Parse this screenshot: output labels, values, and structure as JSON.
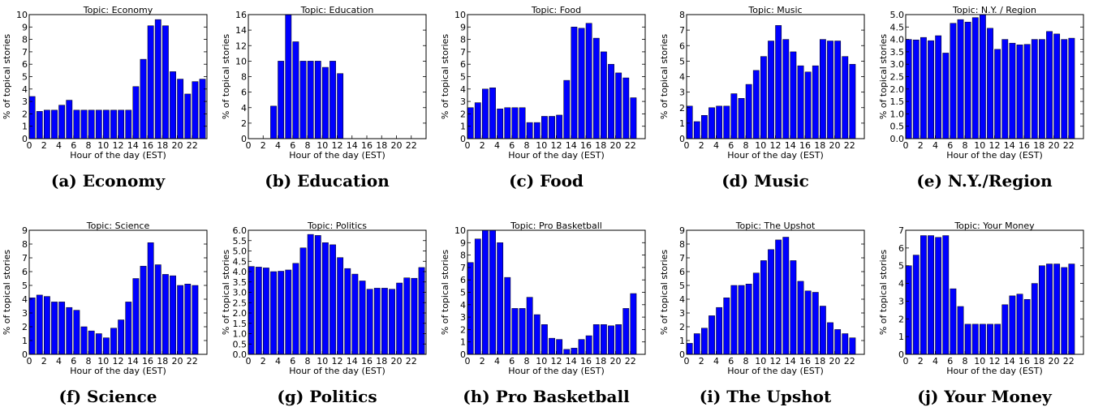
{
  "chart_data": [
    {
      "type": "bar",
      "title": "Topic: Economy",
      "caption": "(a) Economy",
      "xlabel": "Hour of the day (EST)",
      "ylabel": "% of topical stories",
      "ylim": [
        0,
        10
      ],
      "yticks": [
        "0",
        "1",
        "2",
        "3",
        "4",
        "5",
        "6",
        "7",
        "8",
        "9",
        "10"
      ],
      "xticks": [
        "0",
        "2",
        "4",
        "6",
        "8",
        "10",
        "12",
        "14",
        "16",
        "18",
        "20",
        "22"
      ],
      "color": "#0000ff",
      "values": [
        3.4,
        2.2,
        2.3,
        2.3,
        2.7,
        3.1,
        2.3,
        2.3,
        2.3,
        2.3,
        2.3,
        2.3,
        2.3,
        2.3,
        4.2,
        6.4,
        9.1,
        9.6,
        9.1,
        5.4,
        4.8,
        3.6,
        4.6,
        4.8
      ]
    },
    {
      "type": "bar",
      "title": "Topic: Education",
      "caption": "(b) Education",
      "xlabel": "Hour of the day (EST)",
      "ylabel": "% of topical stories",
      "ylim": [
        0,
        16
      ],
      "yticks": [
        "0",
        "2",
        "4",
        "6",
        "8",
        "10",
        "12",
        "14",
        "16"
      ],
      "xticks": [
        "0",
        "2",
        "4",
        "6",
        "8",
        "10",
        "12",
        "14",
        "16",
        "18",
        "20",
        "22"
      ],
      "color": "#0000ff",
      "values": [
        0,
        0,
        0,
        4.2,
        10,
        16,
        12.5,
        10,
        10,
        10,
        9.2,
        10,
        8.4,
        0,
        0,
        0,
        0,
        0,
        0,
        0,
        0,
        0,
        0,
        0
      ]
    },
    {
      "type": "bar",
      "title": "Topic: Food",
      "caption": "(c) Food",
      "xlabel": "Hour of the day (EST)",
      "ylabel": "% of topical stories",
      "ylim": [
        0,
        10
      ],
      "yticks": [
        "0",
        "1",
        "2",
        "3",
        "4",
        "5",
        "6",
        "7",
        "8",
        "9",
        "10"
      ],
      "xticks": [
        "0",
        "2",
        "4",
        "6",
        "8",
        "10",
        "12",
        "14",
        "16",
        "18",
        "20",
        "22"
      ],
      "color": "#0000ff",
      "values": [
        2.5,
        2.9,
        4.0,
        4.1,
        2.4,
        2.5,
        2.5,
        2.5,
        1.3,
        1.3,
        1.8,
        1.8,
        1.9,
        4.7,
        9.0,
        8.9,
        9.3,
        8.1,
        7.0,
        6.0,
        5.3,
        4.9,
        3.3,
        0
      ]
    },
    {
      "type": "bar",
      "title": "Topic: Music",
      "caption": "(d) Music",
      "xlabel": "Hour of the day (EST)",
      "ylabel": "% of topical stories",
      "ylim": [
        0,
        8
      ],
      "yticks": [
        "0",
        "1",
        "2",
        "3",
        "4",
        "5",
        "6",
        "7",
        "8"
      ],
      "xticks": [
        "0",
        "2",
        "4",
        "6",
        "8",
        "10",
        "12",
        "14",
        "16",
        "18",
        "20",
        "22"
      ],
      "color": "#0000ff",
      "values": [
        2.1,
        1.1,
        1.5,
        2.0,
        2.1,
        2.1,
        2.9,
        2.6,
        3.5,
        4.4,
        5.3,
        6.3,
        7.3,
        6.4,
        5.6,
        4.7,
        4.3,
        4.7,
        6.4,
        6.3,
        6.3,
        5.3,
        4.8,
        0
      ]
    },
    {
      "type": "bar",
      "title": "Topic: N.Y. / Region",
      "caption": "(e) N.Y./Region",
      "xlabel": "Hour of the day (EST)",
      "ylabel": "% of topical stories",
      "ylim": [
        0,
        5
      ],
      "yticks": [
        "0.0",
        "0.5",
        "1.0",
        "1.5",
        "2.0",
        "2.5",
        "3.0",
        "3.5",
        "4.0",
        "4.5",
        "5.0"
      ],
      "xticks": [
        "0",
        "2",
        "4",
        "6",
        "8",
        "10",
        "12",
        "14",
        "16",
        "18",
        "20",
        "22"
      ],
      "color": "#0000ff",
      "values": [
        4.0,
        3.98,
        4.08,
        3.95,
        4.15,
        3.45,
        4.65,
        4.8,
        4.7,
        4.88,
        5.0,
        4.45,
        3.6,
        4.0,
        3.85,
        3.78,
        3.8,
        4.0,
        4.0,
        4.32,
        4.22,
        4.0,
        4.05,
        0
      ]
    },
    {
      "type": "bar",
      "title": "Topic: Science",
      "caption": "(f) Science",
      "xlabel": "Hour of the day (EST)",
      "ylabel": "% of topical stories",
      "ylim": [
        0,
        9
      ],
      "yticks": [
        "0",
        "1",
        "2",
        "3",
        "4",
        "5",
        "6",
        "7",
        "8",
        "9"
      ],
      "xticks": [
        "0",
        "2",
        "4",
        "6",
        "8",
        "10",
        "12",
        "14",
        "16",
        "18",
        "20",
        "22"
      ],
      "color": "#0000ff",
      "values": [
        4.1,
        4.3,
        4.2,
        3.8,
        3.8,
        3.4,
        3.2,
        2.0,
        1.7,
        1.5,
        1.2,
        1.9,
        2.5,
        3.8,
        5.5,
        6.4,
        8.1,
        6.5,
        5.8,
        5.7,
        5.0,
        5.1,
        5.0,
        0
      ]
    },
    {
      "type": "bar",
      "title": "Topic: Politics",
      "caption": "(g) Politics",
      "xlabel": "Hour of the day (EST)",
      "ylabel": "% of topical stories",
      "ylim": [
        0,
        6
      ],
      "yticks": [
        "0.0",
        "0.5",
        "1.0",
        "1.5",
        "2.0",
        "2.5",
        "3.0",
        "3.5",
        "4.0",
        "4.5",
        "5.0",
        "5.5",
        "6.0"
      ],
      "xticks": [
        "0",
        "2",
        "4",
        "6",
        "8",
        "10",
        "12",
        "14",
        "16",
        "18",
        "20",
        "22"
      ],
      "color": "#0000ff",
      "values": [
        4.25,
        4.22,
        4.18,
        4.0,
        4.02,
        4.08,
        4.4,
        5.15,
        5.8,
        5.75,
        5.4,
        5.3,
        4.68,
        4.15,
        3.88,
        3.55,
        3.15,
        3.2,
        3.2,
        3.15,
        3.45,
        3.7,
        3.68,
        4.2
      ]
    },
    {
      "type": "bar",
      "title": "Topic: Pro Basketball",
      "caption": "(h) Pro Basketball",
      "xlabel": "Hour of the day (EST)",
      "ylabel": "% of topical stories",
      "ylim": [
        0,
        10
      ],
      "yticks": [
        "0",
        "1",
        "2",
        "3",
        "4",
        "5",
        "6",
        "7",
        "8",
        "9",
        "10"
      ],
      "xticks": [
        "0",
        "2",
        "4",
        "6",
        "8",
        "10",
        "12",
        "14",
        "16",
        "18",
        "20",
        "22"
      ],
      "color": "#0000ff",
      "values": [
        7.4,
        9.3,
        10,
        10,
        9.0,
        6.2,
        3.7,
        3.7,
        4.6,
        3.2,
        2.4,
        1.3,
        1.2,
        0.4,
        0.5,
        1.2,
        1.5,
        2.4,
        2.4,
        2.3,
        2.4,
        3.7,
        4.9,
        0
      ]
    },
    {
      "type": "bar",
      "title": "Topic: The Upshot",
      "caption": "(i) The Upshot",
      "xlabel": "Hour of the day (EST)",
      "ylabel": "% of topical stories",
      "ylim": [
        0,
        9
      ],
      "yticks": [
        "0",
        "1",
        "2",
        "3",
        "4",
        "5",
        "6",
        "7",
        "8",
        "9"
      ],
      "xticks": [
        "0",
        "2",
        "4",
        "6",
        "8",
        "10",
        "12",
        "14",
        "16",
        "18",
        "20",
        "22"
      ],
      "color": "#0000ff",
      "values": [
        0.8,
        1.5,
        1.9,
        2.8,
        3.4,
        4.1,
        5.0,
        5.0,
        5.1,
        5.9,
        6.8,
        7.6,
        8.3,
        8.5,
        6.8,
        5.3,
        4.6,
        4.5,
        3.5,
        2.3,
        1.8,
        1.5,
        1.2,
        0
      ]
    },
    {
      "type": "bar",
      "title": "Topic: Your Money",
      "caption": "(j) Your Money",
      "xlabel": "Hour of the day (EST)",
      "ylabel": "% of topical stories",
      "ylim": [
        0,
        7
      ],
      "yticks": [
        "0",
        "1",
        "2",
        "3",
        "4",
        "5",
        "6",
        "7"
      ],
      "xticks": [
        "0",
        "2",
        "4",
        "6",
        "8",
        "10",
        "12",
        "14",
        "16",
        "18",
        "20",
        "22"
      ],
      "color": "#0000ff",
      "values": [
        5.0,
        5.6,
        6.7,
        6.7,
        6.6,
        6.7,
        3.7,
        2.7,
        1.7,
        1.7,
        1.7,
        1.7,
        1.7,
        2.8,
        3.3,
        3.4,
        3.1,
        4.0,
        5.0,
        5.1,
        5.1,
        4.9,
        5.1,
        0
      ]
    }
  ]
}
